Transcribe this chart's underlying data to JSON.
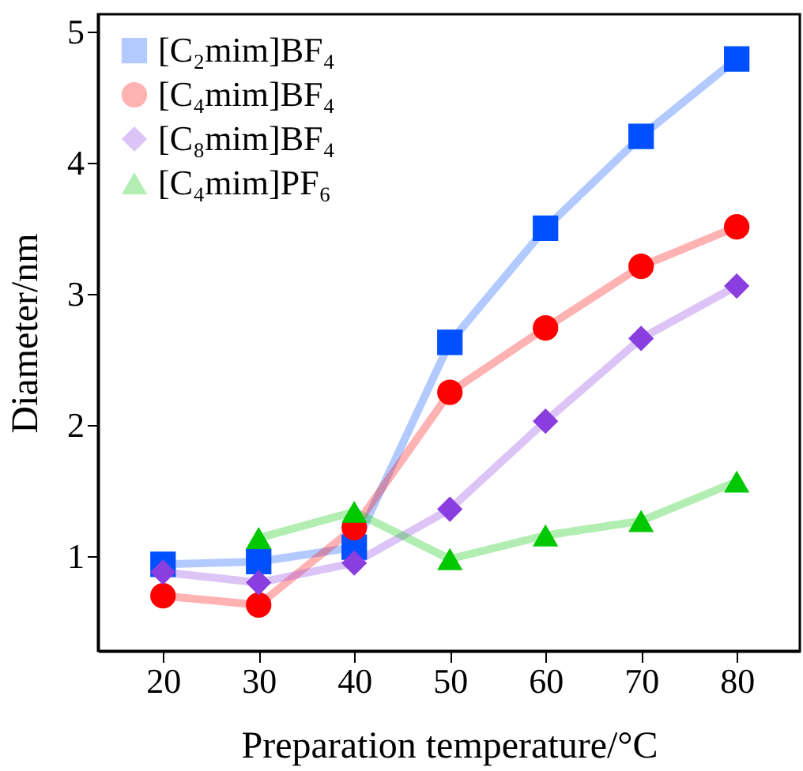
{
  "chart_data": {
    "type": "line",
    "xlabel": "Preparation temperature/°C",
    "ylabel": "Diameter/nm",
    "x": [
      20,
      30,
      40,
      50,
      60,
      70,
      80
    ],
    "xlim": [
      13.2,
      86.6
    ],
    "xticks": [
      20,
      30,
      40,
      50,
      60,
      70,
      80
    ],
    "ylim": [
      0.28,
      5.13
    ],
    "yticks": [
      1,
      2,
      3,
      4,
      5
    ],
    "grid": false,
    "legend": "top left",
    "line_style": "solid",
    "series": [
      {
        "name": "[C₂mim]BF₄",
        "color": "#0050ff",
        "marker": "square",
        "values": [
          0.94,
          0.96,
          1.07,
          2.63,
          3.5,
          4.2,
          4.79
        ]
      },
      {
        "name": "[C₄mim]BF₄",
        "color": "#ff0000",
        "marker": "circle",
        "values": [
          0.7,
          0.63,
          1.22,
          2.25,
          2.74,
          3.21,
          3.51
        ]
      },
      {
        "name": "[C₈mim]BF₄",
        "color": "#8a3ee0",
        "marker": "diamond",
        "values": [
          0.88,
          0.8,
          0.95,
          1.36,
          2.03,
          2.66,
          3.06
        ]
      },
      {
        "name": "[C₄mim]PF₆",
        "color": "#00c800",
        "marker": "triangle",
        "values": [
          null,
          1.14,
          1.34,
          0.98,
          1.16,
          1.27,
          1.57
        ]
      }
    ]
  }
}
